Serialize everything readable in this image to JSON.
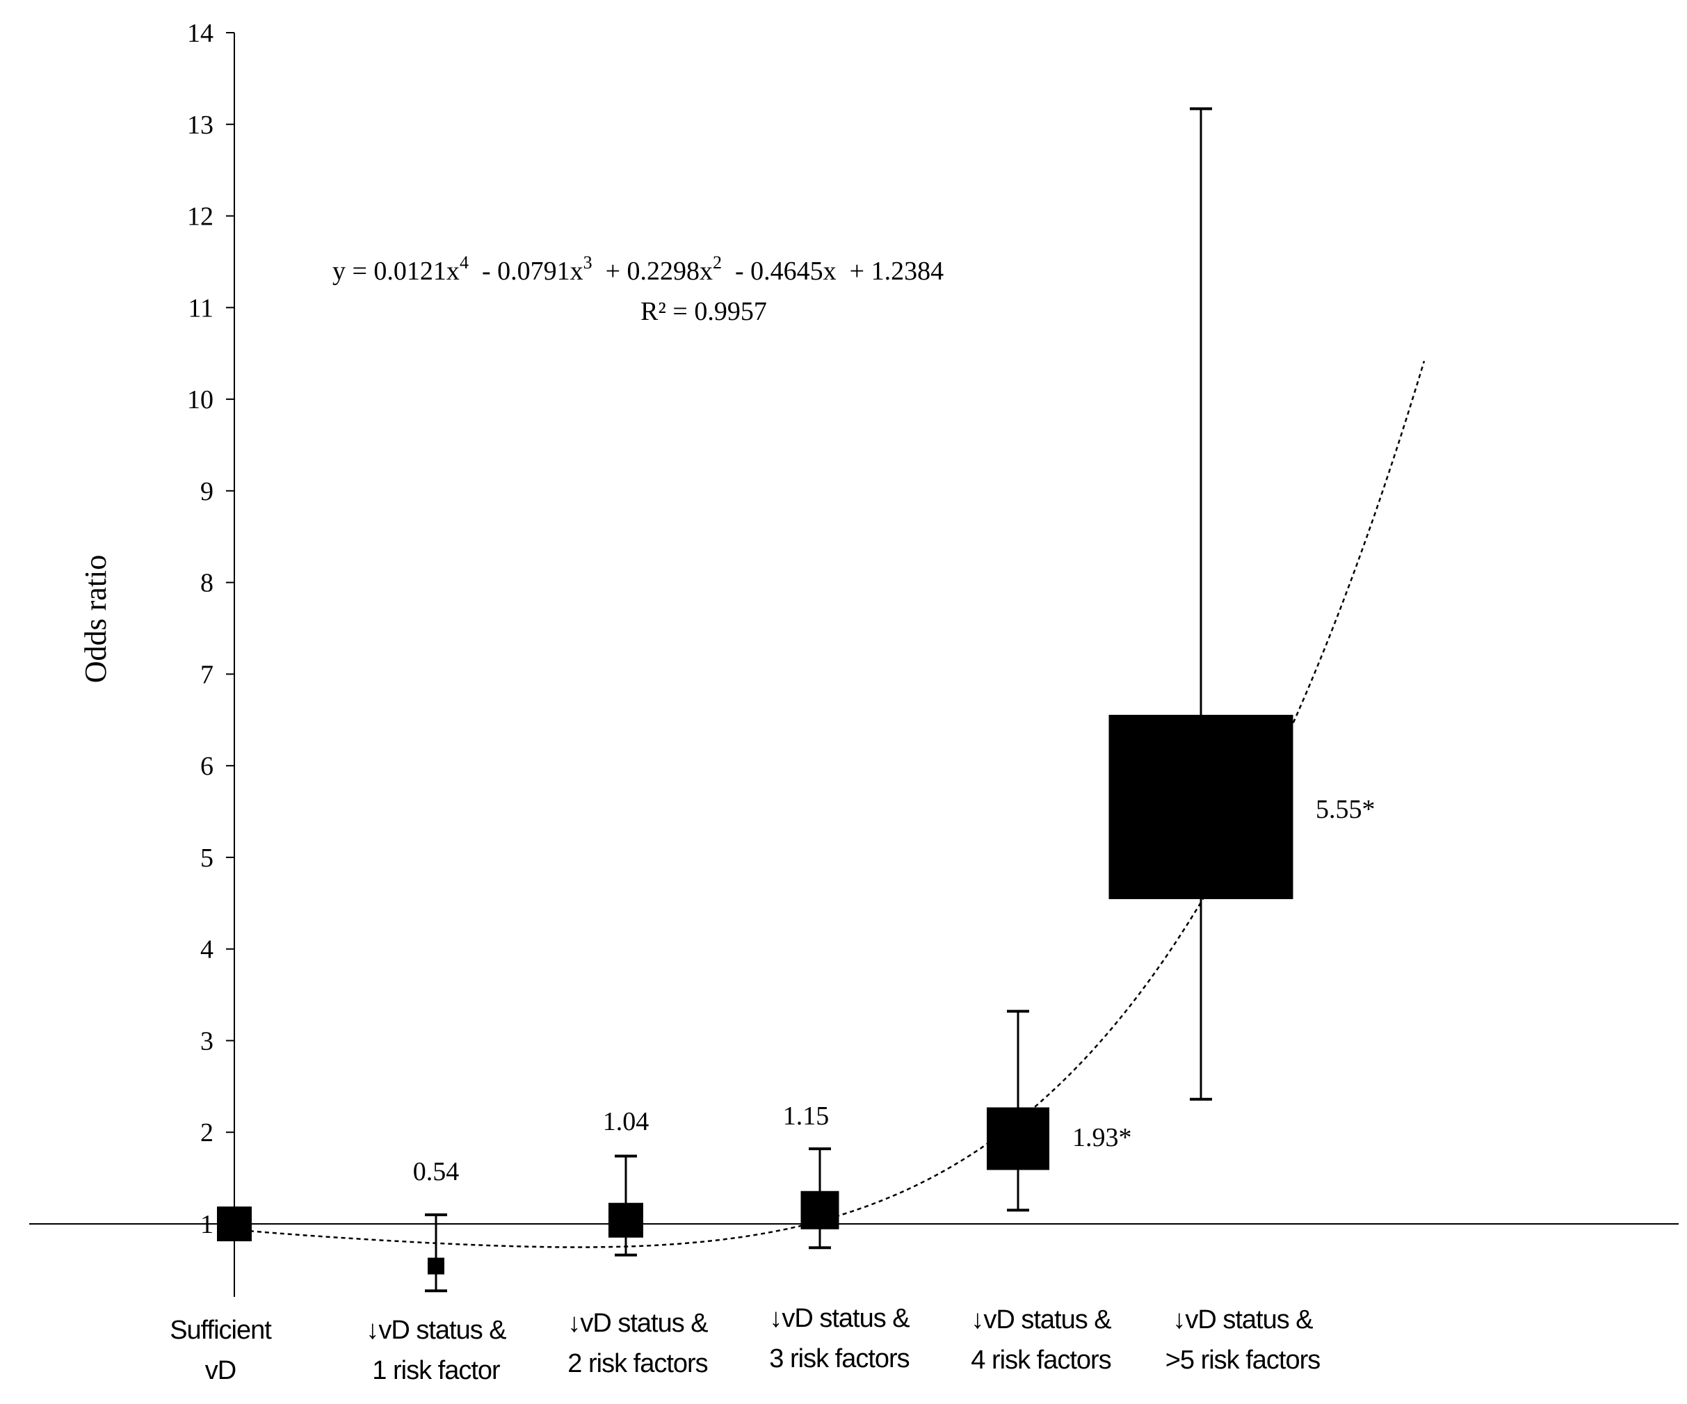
{
  "chart_data": {
    "type": "scatter",
    "ylabel": "Odds ratio",
    "ylim": [
      0,
      14
    ],
    "yticks": [
      1,
      2,
      3,
      4,
      5,
      6,
      7,
      8,
      9,
      10,
      11,
      12,
      13,
      14
    ],
    "categories": [
      [
        "Sufficient",
        "vD"
      ],
      [
        "↓vD status  &",
        "1 risk factor"
      ],
      [
        "↓vD status  &",
        "2 risk factors"
      ],
      [
        "↓vD status  &",
        "3 risk factors"
      ],
      [
        "↓vD status  &",
        "4 risk factors"
      ],
      [
        "↓vD status  &",
        ">5 risk factors"
      ]
    ],
    "points": [
      {
        "x": 1,
        "or": 1.0,
        "ci_low": null,
        "ci_high": null,
        "label": "",
        "weight": 1.0
      },
      {
        "x": 2,
        "or": 0.54,
        "ci_low": 0.27,
        "ci_high": 1.1,
        "label": "0.54",
        "weight": 0.55
      },
      {
        "x": 3,
        "or": 1.04,
        "ci_low": 0.66,
        "ci_high": 1.74,
        "label": "1.04",
        "weight": 1.05
      },
      {
        "x": 4,
        "or": 1.15,
        "ci_low": 0.74,
        "ci_high": 1.82,
        "label": "1.15",
        "weight": 1.2
      },
      {
        "x": 5,
        "or": 1.93,
        "ci_low": 1.15,
        "ci_high": 3.32,
        "label": "1.93*",
        "weight": 1.95
      },
      {
        "x": 6,
        "or": 5.55,
        "ci_low": 2.36,
        "ci_high": 13.17,
        "label": "5.55*",
        "weight": 5.8
      }
    ],
    "reference_line": 1,
    "trendline": {
      "type": "polynomial",
      "order": 4,
      "coefficients": [
        0.0121,
        -0.0791,
        0.2298,
        -0.4645,
        1.2384
      ],
      "x_range": [
        1,
        6.9
      ]
    },
    "equation": {
      "prefix": "y = 0.0121x",
      "exp4": "4",
      "term2": "  - 0.0791x",
      "exp3": "3",
      "term3": "  + 0.2298x",
      "exp2": "2",
      "term4": "  - 0.4645x  + 1.2384",
      "r2": "R² = 0.9957"
    },
    "grid": false,
    "legend": "none"
  }
}
